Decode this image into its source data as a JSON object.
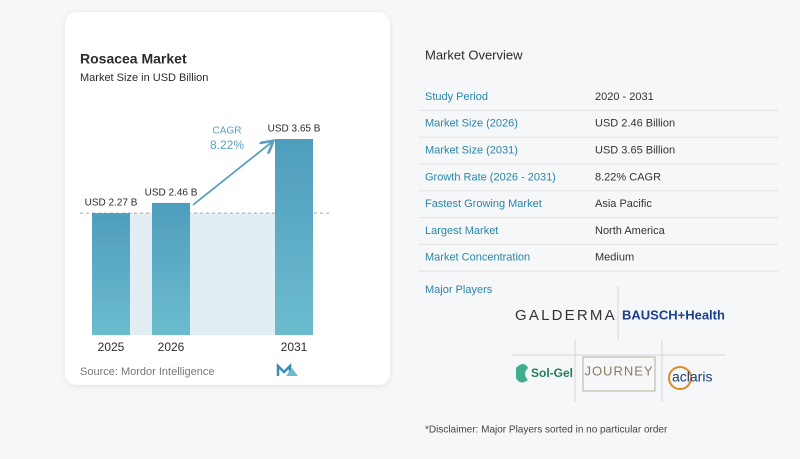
{
  "chart_data": {
    "type": "bar",
    "title": "Rosacea Market",
    "subtitle": "Market Size in USD Billion",
    "categories": [
      "2025",
      "2026",
      "2031"
    ],
    "values": [
      2.27,
      2.46,
      3.65
    ],
    "value_labels": [
      "USD 2.27 B",
      "USD 2.46 B",
      "USD 3.65 B"
    ],
    "color": "#5aa9c6",
    "annotation": {
      "label": "CAGR",
      "value": "8.22%"
    },
    "source": "Source:  Mordor Intelligence"
  },
  "overview": {
    "title": "Market Overview",
    "rows": [
      [
        "Study Period",
        "2020 - 2031"
      ],
      [
        "Market Size (2026)",
        "USD 2.46 Billion"
      ],
      [
        "Market Size (2031)",
        "USD 3.65 Billion"
      ],
      [
        "Growth Rate (2026 - 2031)",
        "8.22% CAGR"
      ],
      [
        "Fastest Growing Market",
        "Asia Pacific"
      ],
      [
        "Largest Market",
        "North America"
      ],
      [
        "Market Concentration",
        "Medium"
      ]
    ],
    "players_title": "Major Players",
    "players": [
      "GALDERMA",
      "BAUSCH+Health",
      "Sol-Gel",
      "JOURNEY",
      "aclaris"
    ],
    "disclaimer": "*Disclaimer: Major Players sorted in no particular order"
  }
}
